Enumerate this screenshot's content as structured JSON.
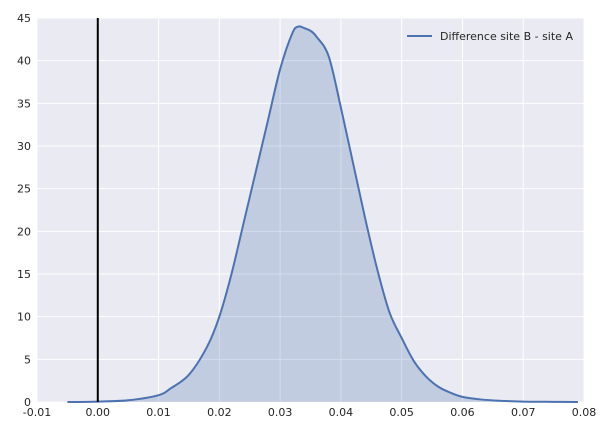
{
  "chart_data": {
    "type": "area",
    "title": "",
    "xlabel": "",
    "ylabel": "",
    "xlim": [
      -0.01,
      0.08
    ],
    "ylim": [
      0,
      45
    ],
    "x_ticks": [
      -0.01,
      0.0,
      0.01,
      0.02,
      0.03,
      0.04,
      0.05,
      0.06,
      0.07,
      0.08
    ],
    "x_tick_labels": [
      "-0.01",
      "0.00",
      "0.01",
      "0.02",
      "0.03",
      "0.04",
      "0.05",
      "0.06",
      "0.07",
      "0.08"
    ],
    "y_ticks": [
      0,
      5,
      10,
      15,
      20,
      25,
      30,
      35,
      40,
      45
    ],
    "y_tick_labels": [
      "0",
      "5",
      "10",
      "15",
      "20",
      "25",
      "30",
      "35",
      "40",
      "45"
    ],
    "grid": true,
    "legend_position": "top-right",
    "reference_line": {
      "x": 0.0,
      "color": "#000000"
    },
    "series": [
      {
        "name": "Difference site B - site A",
        "color": "#4c72b0",
        "fill_color": "#4c72b0",
        "x": [
          -0.005,
          0.0,
          0.005,
          0.01,
          0.012,
          0.015,
          0.018,
          0.02,
          0.022,
          0.024,
          0.026,
          0.028,
          0.03,
          0.032,
          0.033,
          0.034,
          0.035,
          0.036,
          0.038,
          0.04,
          0.042,
          0.044,
          0.046,
          0.048,
          0.05,
          0.052,
          0.054,
          0.056,
          0.058,
          0.06,
          0.063,
          0.066,
          0.07,
          0.075,
          0.079
        ],
        "y": [
          0,
          0.05,
          0.2,
          0.8,
          1.6,
          3.2,
          6.5,
          10,
          15,
          21,
          27,
          33,
          39,
          43.2,
          44,
          43.8,
          43.5,
          42.8,
          40.5,
          34.5,
          28,
          21.5,
          15.5,
          10.5,
          7.5,
          4.8,
          3.0,
          1.8,
          1.1,
          0.6,
          0.3,
          0.15,
          0.05,
          0.02,
          0
        ]
      }
    ]
  }
}
